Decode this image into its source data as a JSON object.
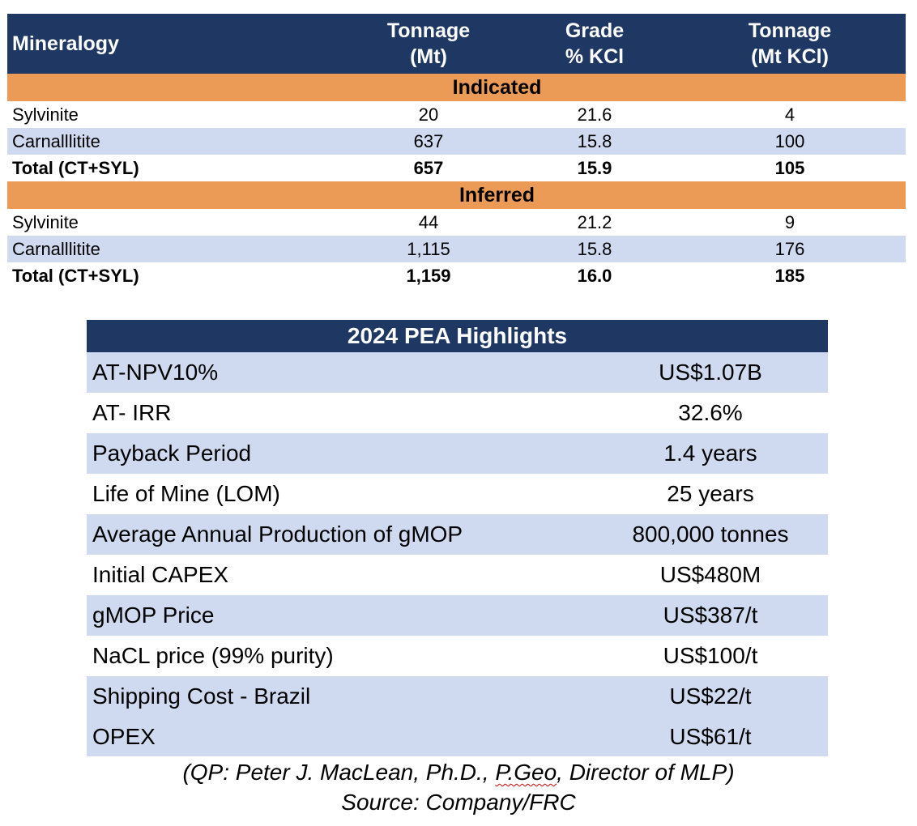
{
  "resource_table": {
    "headers": {
      "mineralogy": "Mineralogy",
      "tonnage_line1": "Tonnage",
      "tonnage_line2": "(Mt)",
      "grade_line1": "Grade",
      "grade_line2": "% KCl",
      "kcl_line1": "Tonnage",
      "kcl_line2": "(Mt KCl)"
    },
    "sections": [
      {
        "title": "Indicated",
        "rows": [
          {
            "name": "Sylvinite",
            "tonnage": "20",
            "grade": "21.6",
            "kcl": "4"
          },
          {
            "name": "Carnalllitite",
            "tonnage": "637",
            "grade": "15.8",
            "kcl": "100"
          },
          {
            "name": "Total (CT+SYL)",
            "tonnage": "657",
            "grade": "15.9",
            "kcl": "105"
          }
        ]
      },
      {
        "title": "Inferred",
        "rows": [
          {
            "name": "Sylvinite",
            "tonnage": "44",
            "grade": "21.2",
            "kcl": "9"
          },
          {
            "name": "Carnalllitite",
            "tonnage": "1,115",
            "grade": "15.8",
            "kcl": "176"
          },
          {
            "name": "Total (CT+SYL)",
            "tonnage": "1,159",
            "grade": "16.0",
            "kcl": "185"
          }
        ]
      }
    ]
  },
  "pea_table": {
    "title": "2024 PEA Highlights",
    "rows": [
      {
        "label": "AT-NPV10%",
        "value": "US$1.07B"
      },
      {
        "label": "AT- IRR",
        "value": "32.6%"
      },
      {
        "label": "Payback Period",
        "value": "1.4 years"
      },
      {
        "label": "Life of Mine (LOM)",
        "value": "25 years"
      },
      {
        "label": "Average Annual Production of gMOP",
        "value": "800,000 tonnes"
      },
      {
        "label": "Initial CAPEX",
        "value": "US$480M"
      },
      {
        "label": "gMOP Price",
        "value": "US$387/t"
      },
      {
        "label": "NaCL price (99% purity)",
        "value": "US$100/t"
      },
      {
        "label": "Shipping Cost - Brazil",
        "value": "US$22/t"
      },
      {
        "label": "OPEX",
        "value": "US$61/t"
      }
    ]
  },
  "notes": {
    "qp_prefix": "(QP: Peter J. MacLean, Ph.D., ",
    "qp_flagged": "P.Geo",
    "qp_suffix": ", Director of MLP)",
    "source": "Source: Company/FRC"
  },
  "colors": {
    "header_navy": "#1f3863",
    "section_orange": "#ec9b57",
    "row_shade": "#cfdaf0"
  }
}
